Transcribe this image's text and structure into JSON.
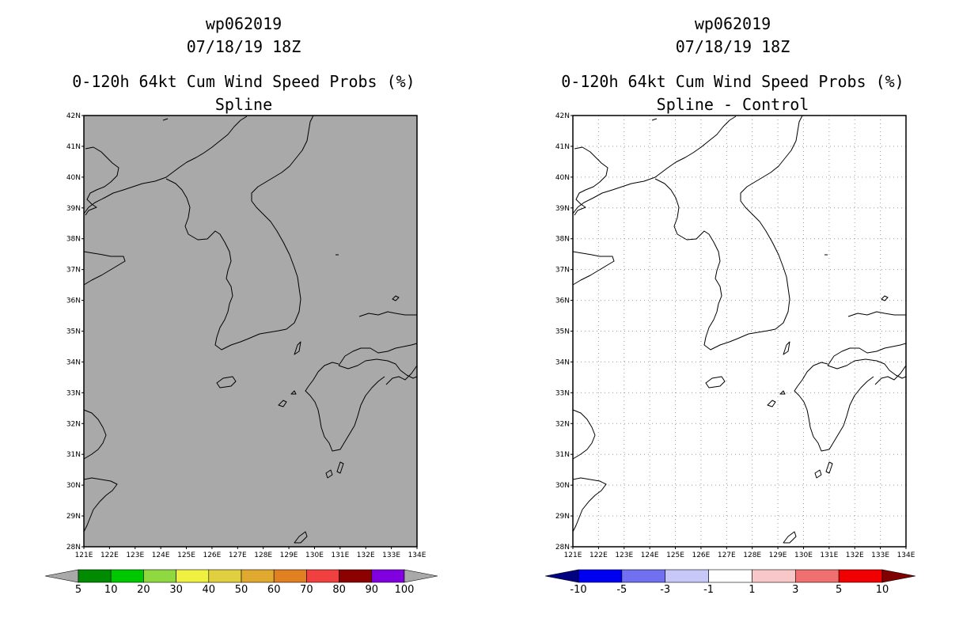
{
  "panels": [
    {
      "id": "spline",
      "title_line1": "wp062019",
      "title_line2": "07/18/19 18Z",
      "title_line3": "0-120h 64kt Cum Wind Speed Probs (%)",
      "title_line4": "Spline",
      "map_fill": "#a9a9a9",
      "gridlines": false,
      "colorbar": {
        "colors": [
          "#008b00",
          "#00c800",
          "#90d840",
          "#f0f040",
          "#e0d040",
          "#e0aa30",
          "#e08020",
          "#f04040",
          "#8b0000",
          "#8000e0"
        ],
        "under_color": "#a9a9a9",
        "over_color": "#a9a9a9",
        "labels": [
          "5",
          "10",
          "20",
          "30",
          "40",
          "50",
          "60",
          "70",
          "80",
          "90",
          "100"
        ]
      }
    },
    {
      "id": "diff",
      "title_line1": "wp062019",
      "title_line2": "07/18/19 18Z",
      "title_line3": "0-120h 64kt Cum Wind Speed Probs (%)",
      "title_line4": "Spline - Control",
      "map_fill": "#ffffff",
      "gridlines": true,
      "colorbar": {
        "colors": [
          "#0000f0",
          "#7070f0",
          "#c8c8f8",
          "#ffffff",
          "#f8c8c8",
          "#f07070",
          "#f00000"
        ],
        "under_color": "#000080",
        "over_color": "#800000",
        "labels": [
          "-10",
          "-5",
          "-3",
          "-1",
          "1",
          "3",
          "5",
          "10"
        ]
      }
    }
  ],
  "axes": {
    "lat_labels": [
      "42N",
      "41N",
      "40N",
      "39N",
      "38N",
      "37N",
      "36N",
      "35N",
      "34N",
      "33N",
      "32N",
      "31N",
      "30N",
      "29N",
      "28N"
    ],
    "lon_labels": [
      "121E",
      "122E",
      "123E",
      "124E",
      "125E",
      "126E",
      "127E",
      "128E",
      "129E",
      "130E",
      "131E",
      "132E",
      "133E",
      "134E"
    ]
  }
}
